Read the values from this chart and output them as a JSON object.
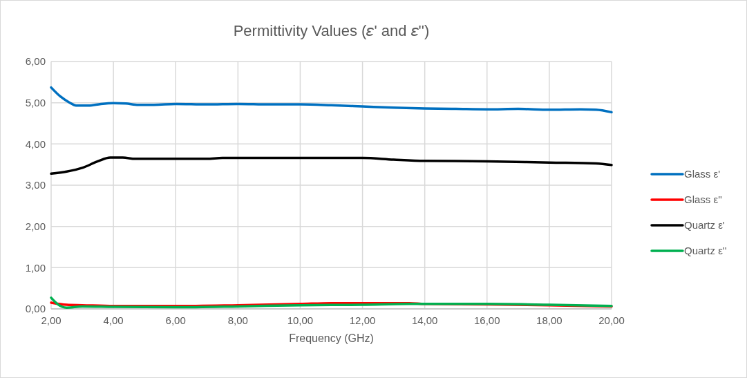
{
  "chart_data": {
    "type": "line",
    "title": "Permittivity Values (𝜀' and 𝜀'')",
    "xlabel": "Frequency (GHz)",
    "xlim": [
      2,
      20
    ],
    "xticks": [
      {
        "value": 2,
        "label": "2,00"
      },
      {
        "value": 4,
        "label": "4,00"
      },
      {
        "value": 6,
        "label": "6,00"
      },
      {
        "value": 8,
        "label": "8,00"
      },
      {
        "value": 10,
        "label": "10,00"
      },
      {
        "value": 12,
        "label": "12,00"
      },
      {
        "value": 14,
        "label": "14,00"
      },
      {
        "value": 16,
        "label": "16,00"
      },
      {
        "value": 18,
        "label": "18,00"
      },
      {
        "value": 20,
        "label": "20,00"
      }
    ],
    "ylim": [
      0,
      6
    ],
    "yticks": [
      {
        "value": 0,
        "label": "0,00"
      },
      {
        "value": 1,
        "label": "1,00"
      },
      {
        "value": 2,
        "label": "2,00"
      },
      {
        "value": 3,
        "label": "3,00"
      },
      {
        "value": 4,
        "label": "4,00"
      },
      {
        "value": 5,
        "label": "5,00"
      },
      {
        "value": 6,
        "label": "6,00"
      }
    ],
    "grid": true,
    "legend": "right",
    "marker": "none",
    "line_style": "solid",
    "series": [
      {
        "name": "Glass ε'",
        "color": "#0070c0",
        "x": [
          2,
          2.3,
          2.6,
          2.8,
          3.2,
          3.6,
          4,
          4.4,
          4.8,
          5.3,
          6,
          7,
          8,
          9,
          10,
          11,
          12,
          13,
          14,
          15,
          16,
          17,
          18,
          19,
          19.5,
          20
        ],
        "values": [
          5.37,
          5.15,
          5,
          4.93,
          4.93,
          4.97,
          4.99,
          4.98,
          4.95,
          4.95,
          4.97,
          4.96,
          4.97,
          4.96,
          4.96,
          4.94,
          4.91,
          4.88,
          4.86,
          4.85,
          4.84,
          4.85,
          4.83,
          4.84,
          4.83,
          4.77
        ]
      },
      {
        "name": "Glass ε''",
        "color": "#ff0000",
        "x": [
          2,
          2.5,
          3,
          4,
          6,
          8,
          10,
          11,
          12,
          13.5,
          14,
          16,
          18,
          20
        ],
        "values": [
          0.15,
          0.1,
          0.09,
          0.07,
          0.07,
          0.09,
          0.12,
          0.14,
          0.14,
          0.14,
          0.12,
          0.11,
          0.09,
          0.06
        ]
      },
      {
        "name": "Quartz ε'",
        "color": "#000000",
        "x": [
          2,
          2.5,
          3,
          3.5,
          3.9,
          4.3,
          4.7,
          6,
          7,
          7.5,
          10,
          12,
          13,
          14,
          16,
          18,
          19.5,
          20
        ],
        "values": [
          3.28,
          3.33,
          3.42,
          3.58,
          3.67,
          3.67,
          3.64,
          3.64,
          3.64,
          3.66,
          3.66,
          3.66,
          3.62,
          3.59,
          3.58,
          3.55,
          3.53,
          3.49
        ]
      },
      {
        "name": "Quartz ε''",
        "color": "#00b050",
        "x": [
          2,
          2.2,
          2.5,
          3,
          4,
          6,
          8,
          10,
          12,
          13.5,
          16,
          18,
          20
        ],
        "values": [
          0.27,
          0.12,
          0.03,
          0.06,
          0.05,
          0.04,
          0.06,
          0.09,
          0.1,
          0.12,
          0.12,
          0.1,
          0.07
        ]
      }
    ]
  }
}
